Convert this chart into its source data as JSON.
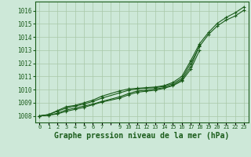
{
  "background_color": "#cde8d8",
  "plot_bg_color": "#cde8d8",
  "grid_color": "#a8c8a8",
  "line_color": "#1a5c1a",
  "title": "Graphe pression niveau de la mer (hPa)",
  "title_fontsize": 7,
  "xlim": [
    -0.5,
    23.5
  ],
  "ylim": [
    1007.5,
    1016.7
  ],
  "yticks": [
    1008,
    1009,
    1010,
    1011,
    1012,
    1013,
    1014,
    1015,
    1016
  ],
  "xtick_labels": [
    "0",
    "1",
    "2",
    "3",
    "4",
    "5",
    "6",
    "7",
    "",
    "9",
    "10",
    "11",
    "12",
    "13",
    "14",
    "15",
    "16",
    "17",
    "18",
    "19",
    "20",
    "21",
    "22",
    "23"
  ],
  "line1_x": [
    0,
    1,
    2,
    3,
    4,
    5,
    6,
    7,
    9,
    10,
    11,
    12,
    13,
    14,
    15,
    16,
    17,
    18,
    19,
    20,
    21,
    22,
    23
  ],
  "line1_y": [
    1008.0,
    1008.1,
    1008.4,
    1008.7,
    1008.8,
    1009.0,
    1009.2,
    1009.5,
    1009.9,
    1010.05,
    1010.1,
    1010.15,
    1010.2,
    1010.3,
    1010.55,
    1011.0,
    1012.2,
    1013.5,
    1014.35,
    1015.05,
    1015.5,
    1015.85,
    1016.3
  ],
  "line2_x": [
    0,
    1,
    2,
    3,
    4,
    5,
    6,
    7,
    9,
    10,
    11,
    12,
    13,
    14,
    15,
    16,
    17,
    18,
    19,
    20,
    21,
    22,
    23
  ],
  "line2_y": [
    1008.0,
    1008.1,
    1008.35,
    1008.6,
    1008.75,
    1008.9,
    1009.1,
    1009.35,
    1009.75,
    1009.95,
    1010.05,
    1010.1,
    1010.15,
    1010.25,
    1010.45,
    1010.85,
    1012.0,
    1013.3,
    1014.2,
    1014.85,
    1015.3,
    1015.6,
    1016.05
  ],
  "line3_x": [
    0,
    1,
    2,
    3,
    4,
    5,
    6,
    7,
    9,
    10,
    11,
    12,
    13,
    14,
    15,
    16,
    17,
    18
  ],
  "line3_y": [
    1008.0,
    1008.05,
    1008.2,
    1008.45,
    1008.6,
    1008.75,
    1008.9,
    1009.1,
    1009.45,
    1009.7,
    1009.9,
    1009.95,
    1010.05,
    1010.15,
    1010.35,
    1010.75,
    1011.75,
    1013.35
  ],
  "line4_x": [
    0,
    1,
    2,
    3,
    4,
    5,
    6,
    7,
    9,
    10,
    11,
    12,
    13,
    14,
    15,
    16,
    17,
    18
  ],
  "line4_y": [
    1008.0,
    1008.05,
    1008.15,
    1008.35,
    1008.5,
    1008.65,
    1008.85,
    1009.05,
    1009.35,
    1009.6,
    1009.8,
    1009.88,
    1009.95,
    1010.1,
    1010.3,
    1010.65,
    1011.55,
    1013.0
  ]
}
